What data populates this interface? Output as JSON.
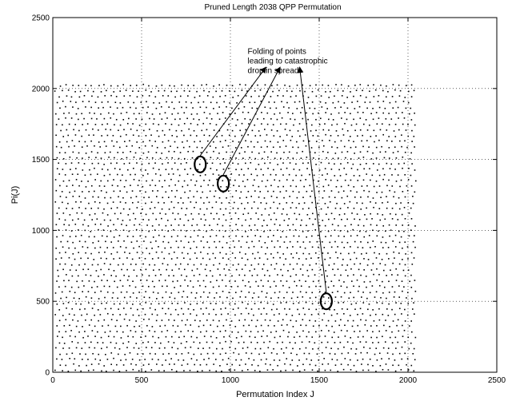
{
  "chart_data": {
    "type": "scatter",
    "title": "Pruned Length 2038 QPP Permutation",
    "xlabel": "Permutation Index J",
    "ylabel": "Pi(J)",
    "xlim": [
      0,
      2500
    ],
    "ylim": [
      0,
      2500
    ],
    "xticks": [
      "0",
      "500",
      "1000",
      "1500",
      "2000",
      "2500"
    ],
    "yticks": [
      "0",
      "500",
      "1000",
      "1500",
      "2000",
      "2500"
    ],
    "grid": true,
    "series": [
      {
        "length": 2038,
        "description_points": "dense lattice of points filling J in [0, 2037] and Pi(J) in [0, 2037]"
      }
    ],
    "annotation": {
      "lines": [
        "Folding of points",
        "leading to catastrophic",
        "drop in spread."
      ],
      "anchor": [
        1480,
        2340
      ],
      "targets": [
        {
          "center": [
            830,
            1465
          ],
          "arrow_to": [
            1200,
            2150
          ]
        },
        {
          "center": [
            960,
            1330
          ],
          "arrow_to": [
            1280,
            2150
          ]
        },
        {
          "center": [
            1540,
            500
          ],
          "arrow_to": [
            1390,
            2150
          ]
        }
      ]
    }
  }
}
